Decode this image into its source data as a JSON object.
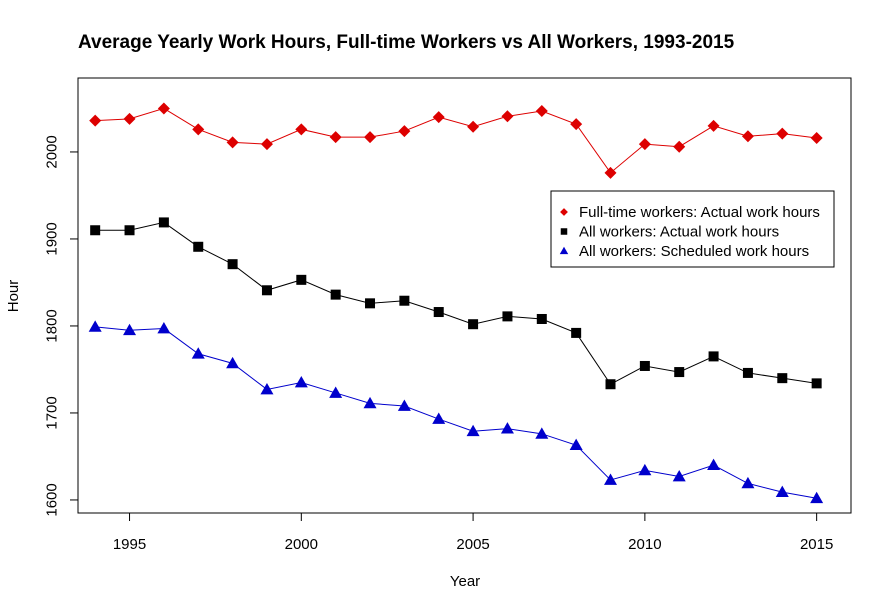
{
  "chart_data": {
    "type": "line",
    "title": "Average Yearly Work Hours, Full-time Workers vs All Workers, 1993-2015",
    "xlabel": "Year",
    "ylabel": "Hour",
    "xlim": [
      1993.5,
      2016
    ],
    "ylim": [
      1585,
      2085
    ],
    "x_ticks": [
      1995,
      2000,
      2005,
      2010,
      2015
    ],
    "y_ticks": [
      1600,
      1700,
      1800,
      1900,
      2000
    ],
    "grid": false,
    "legend_position": "right",
    "x": [
      1994,
      1995,
      1996,
      1997,
      1998,
      1999,
      2000,
      2001,
      2002,
      2003,
      2004,
      2005,
      2006,
      2007,
      2008,
      2009,
      2010,
      2011,
      2012,
      2013,
      2014,
      2015
    ],
    "series": [
      {
        "name": "Full-time workers: Actual work hours",
        "color": "#dd0000",
        "marker": "diamond",
        "values": [
          2036,
          2038,
          2050,
          2026,
          2011,
          2009,
          2026,
          2017,
          2017,
          2024,
          2040,
          2029,
          2041,
          2047,
          2032,
          1976,
          2009,
          2006,
          2030,
          2018,
          2021,
          2016
        ]
      },
      {
        "name": "All workers: Actual work hours",
        "color": "#000000",
        "marker": "square",
        "values": [
          1910,
          1910,
          1919,
          1891,
          1871,
          1841,
          1853,
          1836,
          1826,
          1829,
          1816,
          1802,
          1811,
          1808,
          1792,
          1733,
          1754,
          1747,
          1765,
          1746,
          1740,
          1734
        ]
      },
      {
        "name": "All workers: Scheduled work hours",
        "color": "#0000cc",
        "marker": "triangle",
        "values": [
          1799,
          1795,
          1797,
          1768,
          1757,
          1727,
          1735,
          1723,
          1711,
          1708,
          1693,
          1679,
          1682,
          1676,
          1663,
          1623,
          1634,
          1627,
          1640,
          1619,
          1609,
          1602
        ]
      }
    ]
  }
}
